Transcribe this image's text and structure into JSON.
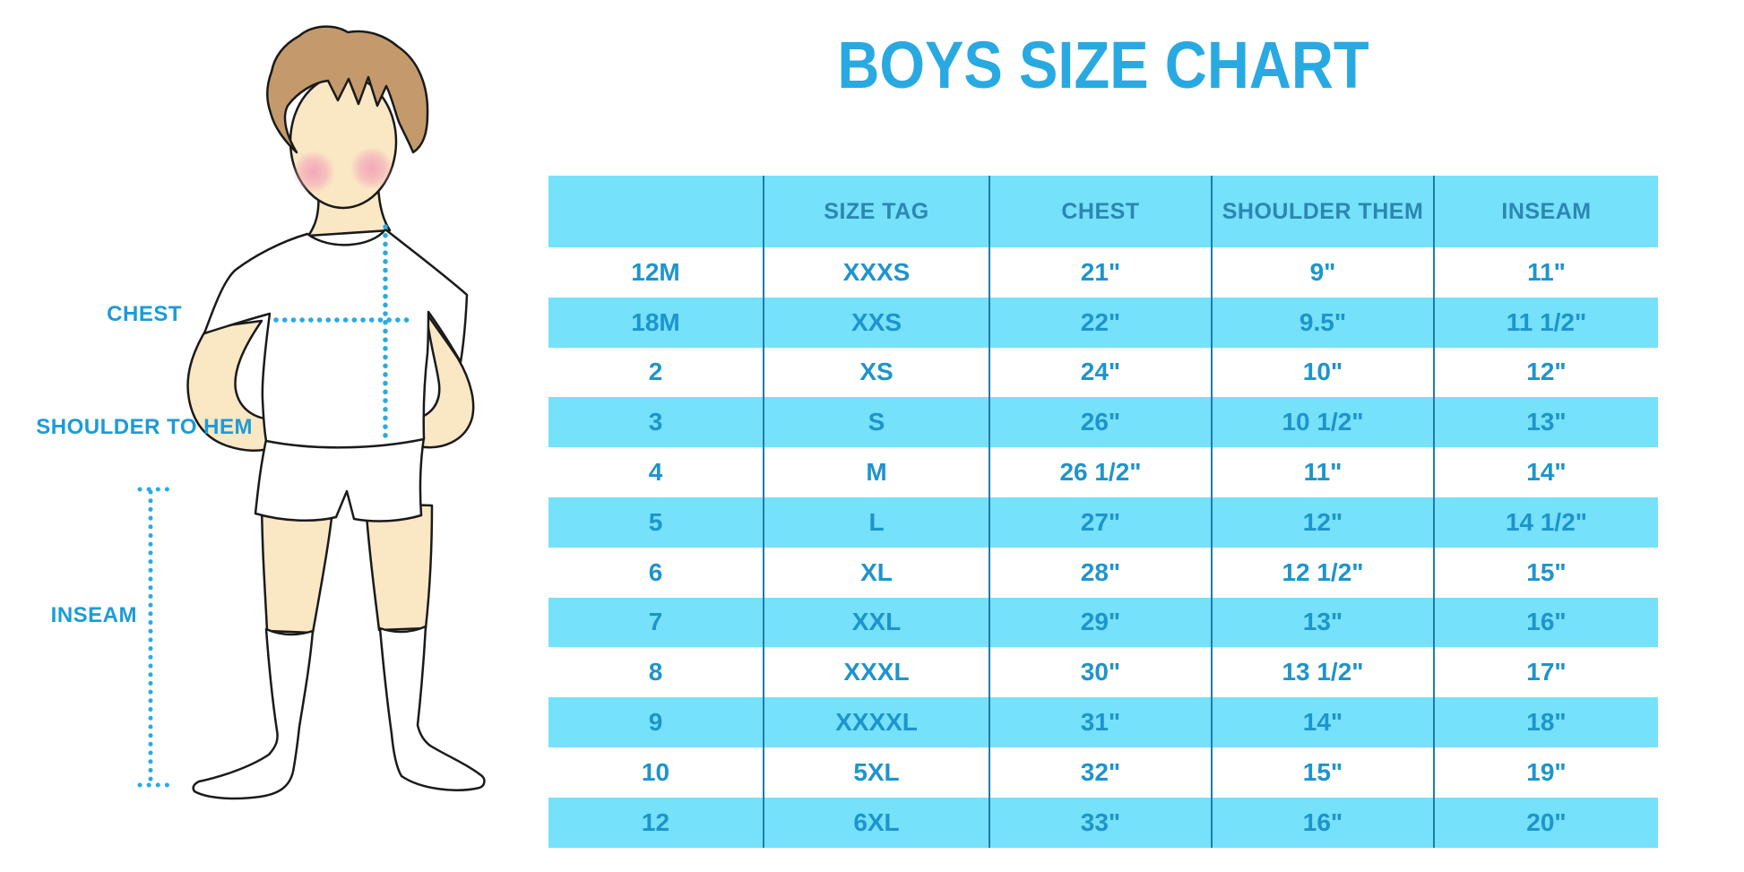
{
  "title": {
    "text": "BOYS SIZE CHART",
    "color": "#29A9E2"
  },
  "figure": {
    "labels": {
      "chest": "CHEST",
      "shoulder_to_hem": "SHOULDER TO HEM",
      "inseam": "INSEAM"
    },
    "colors": {
      "skin": "#FAE7C4",
      "hair": "#C49A6C",
      "cheek": "#F2A4B8",
      "outline": "#1A1A1A",
      "garment": "#FFFFFF",
      "measure_dots": "#29ABE2",
      "label_text": "#1B9BD9"
    }
  },
  "table_style": {
    "band_bg": "#75E1FA",
    "header_text": "#2B87B2",
    "cell_text": "#1E94CC",
    "divider": "#1F7CA9"
  },
  "chart_data": {
    "type": "table",
    "title": "BOYS SIZE CHART",
    "columns": [
      "",
      "SIZE TAG",
      "CHEST",
      "SHOULDER THEM",
      "INSEAM"
    ],
    "rows": [
      [
        "12M",
        "XXXS",
        "21\"",
        "9\"",
        "11\""
      ],
      [
        "18M",
        "XXS",
        "22\"",
        "9.5\"",
        "11 1/2\""
      ],
      [
        "2",
        "XS",
        "24\"",
        "10\"",
        "12\""
      ],
      [
        "3",
        "S",
        "26\"",
        "10 1/2\"",
        "13\""
      ],
      [
        "4",
        "M",
        "26 1/2\"",
        "11\"",
        "14\""
      ],
      [
        "5",
        "L",
        "27\"",
        "12\"",
        "14 1/2\""
      ],
      [
        "6",
        "XL",
        "28\"",
        "12 1/2\"",
        "15\""
      ],
      [
        "7",
        "XXL",
        "29\"",
        "13\"",
        "16\""
      ],
      [
        "8",
        "XXXL",
        "30\"",
        "13 1/2\"",
        "17\""
      ],
      [
        "9",
        "XXXXL",
        "31\"",
        "14\"",
        "18\""
      ],
      [
        "10",
        "5XL",
        "32\"",
        "15\"",
        "19\""
      ],
      [
        "12",
        "6XL",
        "33\"",
        "16\"",
        "20\""
      ]
    ],
    "layout": {
      "striped": true,
      "stripe_starts_on_second_row": true,
      "legend": "none",
      "grid": "vertical-dividers-only"
    }
  }
}
